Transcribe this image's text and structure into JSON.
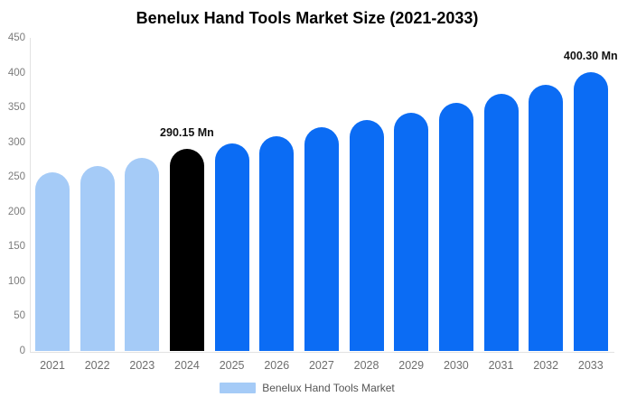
{
  "title": "Benelux Hand Tools Market Size (2021-2033)",
  "legend": {
    "label": "Benelux Hand Tools Market",
    "swatch_color": "#a5cbf7"
  },
  "annotations": [
    {
      "category": "2024",
      "text": "290.15 Mn"
    },
    {
      "category": "2033",
      "text": "400.30 Mn"
    }
  ],
  "colors": {
    "historical_bar": "#a5cbf7",
    "current_bar": "#000000",
    "forecast_bar": "#0b6cf4",
    "axis_line": "#e2e2e2",
    "tick_text": "#7c7c7c",
    "category_text": "#6e6e6e",
    "annotation_text": "#111111",
    "background": "#ffffff"
  },
  "chart_data": {
    "type": "bar",
    "title": "Benelux Hand Tools Market Size (2021-2033)",
    "categories": [
      "2021",
      "2022",
      "2023",
      "2024",
      "2025",
      "2026",
      "2027",
      "2028",
      "2029",
      "2030",
      "2031",
      "2032",
      "2033"
    ],
    "values": [
      257,
      266,
      277,
      290.15,
      298,
      309,
      321,
      332,
      343,
      357,
      370,
      383,
      400.3
    ],
    "unit": "Mn",
    "point_colors": [
      "#a5cbf7",
      "#a5cbf7",
      "#a5cbf7",
      "#000000",
      "#0b6cf4",
      "#0b6cf4",
      "#0b6cf4",
      "#0b6cf4",
      "#0b6cf4",
      "#0b6cf4",
      "#0b6cf4",
      "#0b6cf4",
      "#0b6cf4"
    ],
    "xlabel": "",
    "ylabel": "",
    "ylim": [
      0,
      450
    ],
    "yticks": [
      0,
      50,
      100,
      150,
      200,
      250,
      300,
      350,
      400,
      450
    ],
    "grid": false,
    "legend_position": "bottom",
    "data_labels": {
      "2024": "290.15 Mn",
      "2033": "400.30 Mn"
    }
  }
}
